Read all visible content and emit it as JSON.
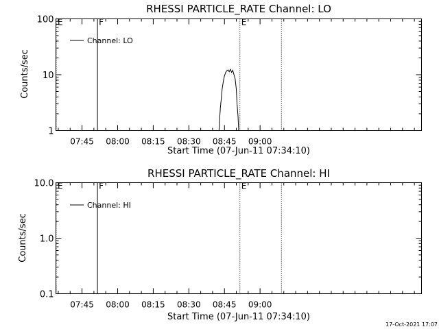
{
  "footer": {
    "timestamp": "17-Oct-2021 17:07"
  },
  "chart_data": [
    {
      "type": "line",
      "title": "RHESSI PARTICLE_RATE Channel: LO",
      "xlabel": "Start Time (07-Jun-11 07:34:10)",
      "ylabel": "Counts/sec",
      "yscale": "log",
      "ylim": [
        1,
        100
      ],
      "xlim_minutes_of_day": [
        454,
        608
      ],
      "xtick_labels": [
        "07:45",
        "08:00",
        "08:15",
        "08:30",
        "08:45",
        "09:00"
      ],
      "xtick_minutes": [
        465,
        480,
        495,
        510,
        525,
        540
      ],
      "ytick_labels": [
        "1",
        "10",
        "100"
      ],
      "ytick_values": [
        1,
        10,
        100
      ],
      "legend": {
        "entries": [
          "Channel: LO"
        ],
        "position": "top-left"
      },
      "markers": [
        {
          "label": "E",
          "minute": 454,
          "style": "dotted"
        },
        {
          "label": "F",
          "minute": 471.5,
          "style": "solid"
        },
        {
          "label": "E",
          "minute": 531.5,
          "style": "dotted"
        },
        {
          "label": "",
          "minute": 549,
          "style": "dotted"
        }
      ],
      "series": [
        {
          "name": "Channel: LO",
          "x": [
            522.7,
            523,
            523.3,
            523.7,
            524,
            524.5,
            525,
            525.5,
            526,
            526.5,
            527,
            527.5,
            528,
            528.5,
            529,
            529.5,
            530,
            530.3,
            530.7,
            531
          ],
          "y": [
            1,
            1.7,
            2.6,
            3.8,
            5.5,
            7.5,
            9.5,
            11,
            11.8,
            12.2,
            11.3,
            12.5,
            11,
            12,
            10,
            8.5,
            5.5,
            3,
            1.8,
            1
          ]
        }
      ]
    },
    {
      "type": "line",
      "title": "RHESSI PARTICLE_RATE Channel: HI",
      "xlabel": "Start Time (07-Jun-11 07:34:10)",
      "ylabel": "Counts/sec",
      "yscale": "log",
      "ylim": [
        0.1,
        10
      ],
      "xlim_minutes_of_day": [
        454,
        608
      ],
      "xtick_labels": [
        "07:45",
        "08:00",
        "08:15",
        "08:30",
        "08:45",
        "09:00"
      ],
      "xtick_minutes": [
        465,
        480,
        495,
        510,
        525,
        540
      ],
      "ytick_labels": [
        "0.1",
        "1.0",
        "10.0"
      ],
      "ytick_values": [
        0.1,
        1,
        10
      ],
      "legend": {
        "entries": [
          "Channel: HI"
        ],
        "position": "top-left"
      },
      "markers": [
        {
          "label": "E",
          "minute": 454,
          "style": "dotted"
        },
        {
          "label": "F",
          "minute": 471.5,
          "style": "solid"
        },
        {
          "label": "E",
          "minute": 531.5,
          "style": "dotted"
        },
        {
          "label": "",
          "minute": 549,
          "style": "dotted"
        }
      ],
      "series": [
        {
          "name": "Channel: HI",
          "x": [],
          "y": []
        }
      ]
    }
  ]
}
